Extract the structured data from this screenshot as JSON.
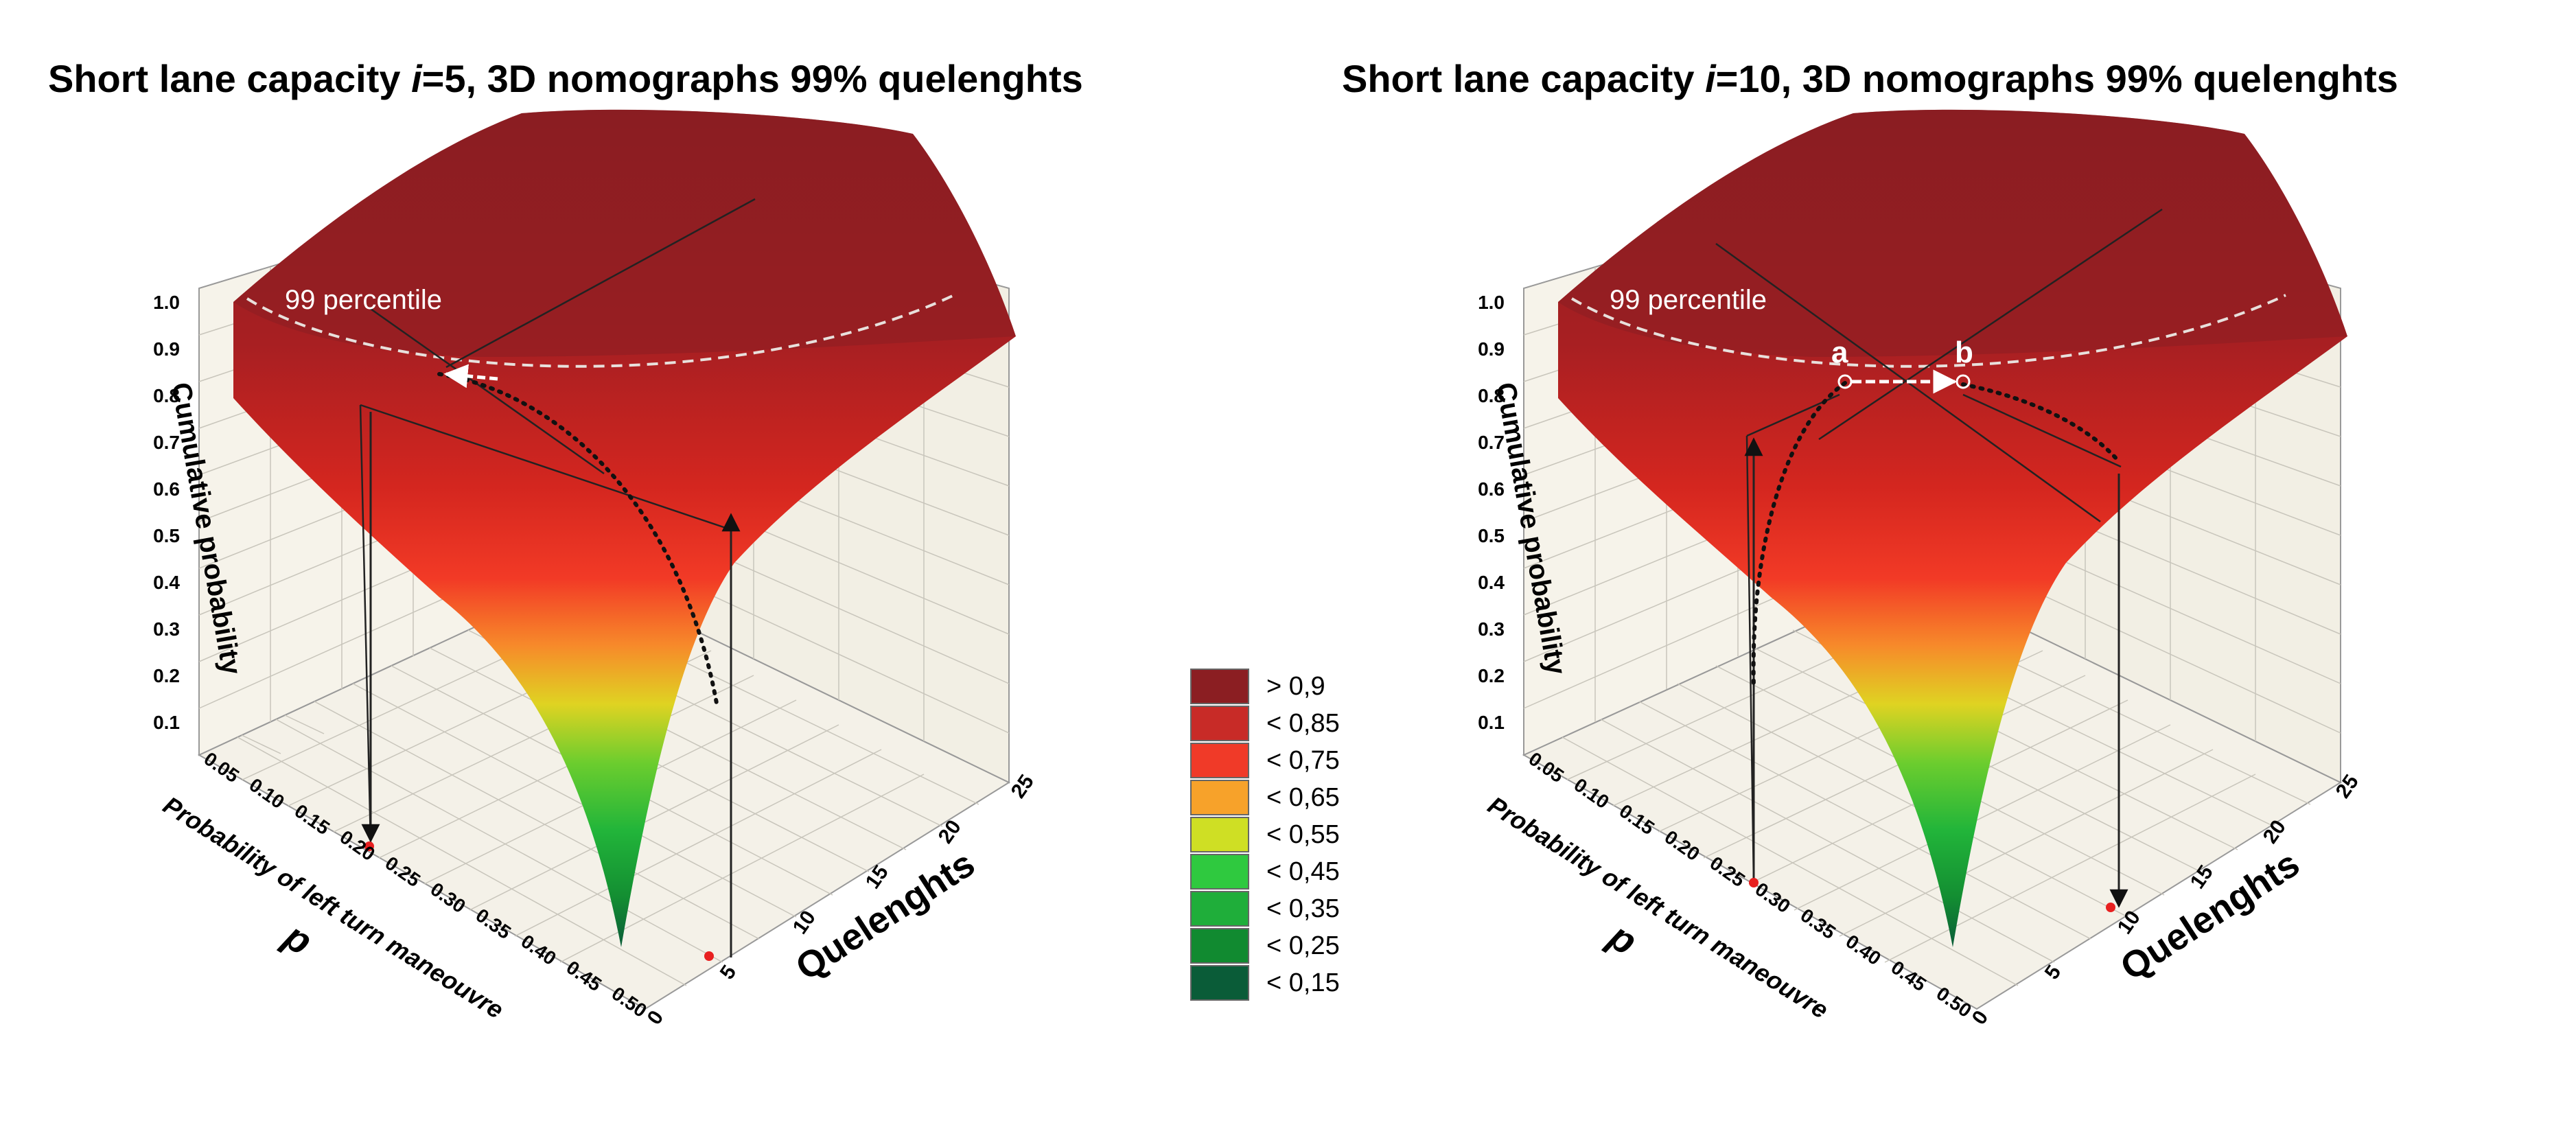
{
  "chart_data": [
    {
      "type": "surface3d",
      "title_prefix": "Short lane capacity ",
      "title_var": "i",
      "title_suffix": "=5, 3D nomographs 99% quelenghts",
      "zlabel": "Cumulative probability",
      "ylabel": "Probability of left turn maneouvre",
      "ysymbol": "p",
      "xlabel": "Quelenghts",
      "z_ticks": [
        "1.0",
        "0.9",
        "0.8",
        "0.7",
        "0.6",
        "0.5",
        "0.4",
        "0.3",
        "0.2",
        "0.1"
      ],
      "p_ticks": [
        "0.05",
        "0.10",
        "0.15",
        "0.20",
        "0.25",
        "0.30",
        "0.35",
        "0.40",
        "0.45",
        "0.50"
      ],
      "q_ticks": [
        "0",
        "5",
        "10",
        "15",
        "20",
        "25"
      ],
      "zlim": [
        0,
        1
      ],
      "plim": [
        0.05,
        0.5
      ],
      "qlim": [
        0,
        25
      ],
      "annotation": "99 percentile",
      "example": {
        "p": 0.2,
        "queue": 5
      }
    },
    {
      "type": "surface3d",
      "title_prefix": "Short lane capacity ",
      "title_var": "i",
      "title_suffix": "=10, 3D nomographs 99% quelenghts",
      "zlabel": "Cumulative probability",
      "ylabel": "Probability of left turn maneouvre",
      "ysymbol": "p",
      "xlabel": "Quelenghts",
      "z_ticks": [
        "1.0",
        "0.9",
        "0.8",
        "0.7",
        "0.6",
        "0.5",
        "0.4",
        "0.3",
        "0.2",
        "0.1"
      ],
      "p_ticks": [
        "0.05",
        "0.10",
        "0.15",
        "0.20",
        "0.25",
        "0.30",
        "0.35",
        "0.40",
        "0.45",
        "0.50"
      ],
      "q_ticks": [
        "0",
        "5",
        "10",
        "15",
        "20",
        "25"
      ],
      "zlim": [
        0,
        1
      ],
      "plim": [
        0.05,
        0.5
      ],
      "qlim": [
        0,
        25
      ],
      "annotation": "99 percentile",
      "point_labels": [
        "a",
        "b"
      ],
      "example": {
        "p": 0.3,
        "queue": 10
      }
    }
  ],
  "legend": {
    "entries": [
      {
        "label": "> 0,9",
        "color": "#8b1e22"
      },
      {
        "label": "< 0,85",
        "color": "#c82b27"
      },
      {
        "label": "< 0,75",
        "color": "#f03a28"
      },
      {
        "label": "< 0,65",
        "color": "#f7a22a"
      },
      {
        "label": "< 0,55",
        "color": "#cfdf24"
      },
      {
        "label": "< 0,45",
        "color": "#2fc93f"
      },
      {
        "label": "< 0,35",
        "color": "#1fae3a"
      },
      {
        "label": "< 0,25",
        "color": "#118a30"
      },
      {
        "label": "< 0,15",
        "color": "#0a5c38"
      }
    ]
  }
}
